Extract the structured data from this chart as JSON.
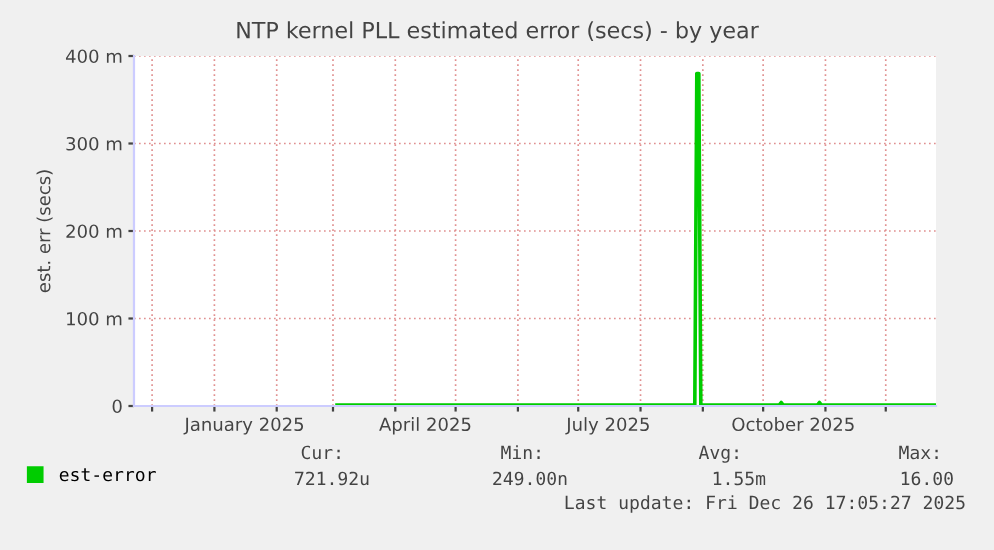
{
  "chart_data": {
    "type": "line",
    "title": "NTP kernel PLL estimated error (secs) - by year",
    "ylabel": "est. err (secs)",
    "xlim": [
      "2024-11-22",
      "2025-12-26"
    ],
    "xticks": [
      {
        "value": "2024-12-01",
        "label": null
      },
      {
        "value": "2025-01-01",
        "label": null
      },
      {
        "value": "2025-01-16",
        "label": "January 2025"
      },
      {
        "value": "2025-02-01",
        "label": null
      },
      {
        "value": "2025-03-01",
        "label": null
      },
      {
        "value": "2025-04-01",
        "label": null
      },
      {
        "value": "2025-04-16",
        "label": "April 2025"
      },
      {
        "value": "2025-05-01",
        "label": null
      },
      {
        "value": "2025-06-01",
        "label": null
      },
      {
        "value": "2025-07-01",
        "label": null
      },
      {
        "value": "2025-07-16",
        "label": "July 2025"
      },
      {
        "value": "2025-08-01",
        "label": null
      },
      {
        "value": "2025-09-01",
        "label": null
      },
      {
        "value": "2025-10-01",
        "label": null
      },
      {
        "value": "2025-10-16",
        "label": "October 2025"
      },
      {
        "value": "2025-11-01",
        "label": null
      },
      {
        "value": "2025-12-01",
        "label": null
      }
    ],
    "ylim": [
      0,
      400
    ],
    "yticks": [
      0,
      {
        "value": 100,
        "label": "100 m"
      },
      {
        "value": 200,
        "label": "200 m"
      },
      {
        "value": 300,
        "label": "300 m"
      },
      {
        "value": 400,
        "label": "400 m"
      }
    ],
    "grid": true,
    "legend": "bottom left",
    "marker": "none",
    "line_style": "solid",
    "series": [
      {
        "name": "est-error",
        "color": "#00cc00",
        "x": [
          "2025-03-03",
          "2025-08-28",
          "2025-08-29",
          "2025-08-30",
          "2025-08-31",
          "2025-10-09",
          "2025-10-10",
          "2025-10-11",
          "2025-10-28",
          "2025-10-29",
          "2025-10-30",
          "2025-12-26"
        ],
        "values": [
          1,
          1,
          380,
          380,
          1,
          1,
          4,
          1,
          1,
          4,
          1,
          1
        ]
      }
    ],
    "annotations": [
      "Cur:",
      "Min:",
      "Avg:",
      "Max:",
      "721.92u",
      "249.00n",
      "1.55m",
      "16.00",
      "Last update: Fri Dec 26 17:05:27 2025"
    ]
  }
}
